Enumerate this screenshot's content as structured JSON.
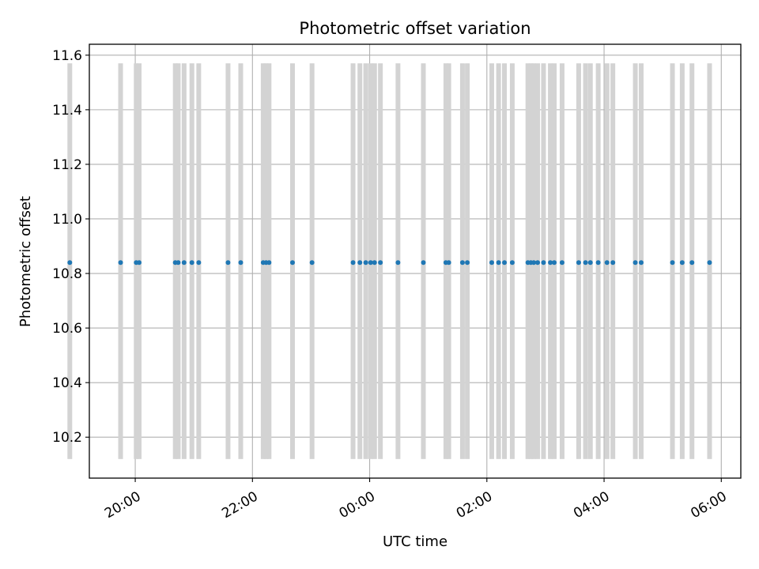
{
  "chart_data": {
    "type": "scatter",
    "title": "Photometric offset variation",
    "xlabel": "UTC time",
    "ylabel": "Photometric offset",
    "xlim": [
      "19:13",
      "06:20"
    ],
    "ylim": [
      10.05,
      11.64
    ],
    "x_ticks": [
      "20:00",
      "22:00",
      "00:00",
      "02:00",
      "04:00",
      "06:00"
    ],
    "y_ticks": [
      "10.2",
      "10.4",
      "10.6",
      "10.8",
      "11.0",
      "11.2",
      "11.4",
      "11.6"
    ],
    "grid": true,
    "colors": {
      "points": "#1f77b4",
      "errorbars": "#d3d3d3",
      "grid": "#b0b0b0"
    },
    "error_range": [
      10.12,
      11.57
    ],
    "series": [
      {
        "x": [
          "18:53",
          "19:45",
          "20:01",
          "20:04",
          "20:41",
          "20:44",
          "20:50",
          "20:58",
          "21:05",
          "21:35",
          "21:48",
          "22:11",
          "22:14",
          "22:17",
          "22:41",
          "23:01",
          "23:43",
          "23:50",
          "23:56",
          "24:01",
          "24:05",
          "24:11",
          "24:29",
          "24:55",
          "25:18",
          "25:21",
          "25:35",
          "25:40",
          "26:05",
          "26:12",
          "26:18",
          "26:26",
          "26:42",
          "26:45",
          "26:48",
          "26:52",
          "26:58",
          "27:05",
          "27:09",
          "27:17",
          "27:34",
          "27:41",
          "27:46",
          "27:54",
          "28:03",
          "28:09",
          "28:32",
          "28:38",
          "29:10",
          "29:20",
          "29:30",
          "29:48"
        ],
        "y": [
          10.84,
          10.84,
          10.84,
          10.84,
          10.84,
          10.84,
          10.84,
          10.84,
          10.84,
          10.84,
          10.84,
          10.84,
          10.84,
          10.84,
          10.84,
          10.84,
          10.84,
          10.84,
          10.84,
          10.84,
          10.84,
          10.84,
          10.84,
          10.84,
          10.84,
          10.84,
          10.84,
          10.84,
          10.84,
          10.84,
          10.84,
          10.84,
          10.84,
          10.84,
          10.84,
          10.84,
          10.84,
          10.84,
          10.84,
          10.84,
          10.84,
          10.84,
          10.84,
          10.84,
          10.84,
          10.84,
          10.84,
          10.84,
          10.84,
          10.84,
          10.84,
          10.84
        ]
      }
    ]
  }
}
